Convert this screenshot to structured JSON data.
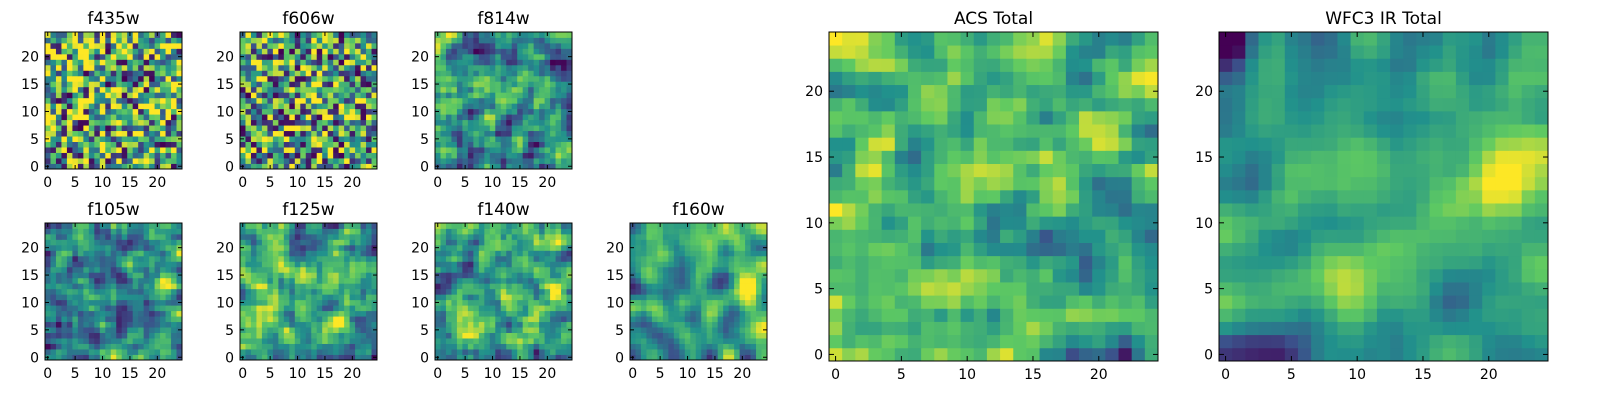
{
  "figure": {
    "layout": "grid of image panels"
  },
  "colormap": [
    "#440154",
    "#3b528b",
    "#21918c",
    "#5ec962",
    "#fde725"
  ],
  "chart_data": [
    {
      "type": "heatmap",
      "title": "f435w",
      "grid": [
        25,
        25
      ],
      "xlim": [
        0,
        24
      ],
      "ylim": [
        0,
        24
      ],
      "xticks": [
        "0",
        "5",
        "10",
        "15",
        "20"
      ],
      "yticks": [
        "0",
        "5",
        "10",
        "15",
        "20"
      ],
      "mean": 0.6,
      "contrast": 0.75,
      "smooth": 0,
      "hotspot": [],
      "dark_corner": false,
      "seed": 11
    },
    {
      "type": "heatmap",
      "title": "f606w",
      "grid": [
        25,
        25
      ],
      "xlim": [
        0,
        24
      ],
      "ylim": [
        0,
        24
      ],
      "xticks": [
        "0",
        "5",
        "10",
        "15",
        "20"
      ],
      "yticks": [
        "0",
        "5",
        "10",
        "15",
        "20"
      ],
      "mean": 0.55,
      "contrast": 0.7,
      "smooth": 0,
      "hotspot": [
        13,
        13
      ],
      "dark_corner": false,
      "seed": 23
    },
    {
      "type": "heatmap",
      "title": "f814w",
      "grid": [
        25,
        25
      ],
      "xlim": [
        0,
        24
      ],
      "ylim": [
        0,
        24
      ],
      "xticks": [
        "0",
        "5",
        "10",
        "15",
        "20"
      ],
      "yticks": [
        "0",
        "5",
        "10",
        "15",
        "20"
      ],
      "mean": 0.5,
      "contrast": 0.65,
      "smooth": 1,
      "hotspot": [
        13,
        13
      ],
      "dark_corner": false,
      "seed": 37
    },
    {
      "type": "heatmap",
      "title": "f105w",
      "grid": [
        25,
        25
      ],
      "xlim": [
        0,
        24
      ],
      "ylim": [
        0,
        24
      ],
      "xticks": [
        "0",
        "5",
        "10",
        "15",
        "20"
      ],
      "yticks": [
        "0",
        "5",
        "10",
        "15",
        "20"
      ],
      "mean": 0.5,
      "contrast": 0.6,
      "smooth": 1,
      "hotspot": [
        13,
        22
      ],
      "dark_corner": false,
      "seed": 41
    },
    {
      "type": "heatmap",
      "title": "f125w",
      "grid": [
        25,
        25
      ],
      "xlim": [
        0,
        24
      ],
      "ylim": [
        0,
        24
      ],
      "xticks": [
        "0",
        "5",
        "10",
        "15",
        "20"
      ],
      "yticks": [
        "0",
        "5",
        "10",
        "15",
        "20"
      ],
      "mean": 0.55,
      "contrast": 0.65,
      "smooth": 1,
      "hotspot": [
        13,
        20
      ],
      "dark_corner": false,
      "seed": 53
    },
    {
      "type": "heatmap",
      "title": "f140w",
      "grid": [
        25,
        25
      ],
      "xlim": [
        0,
        24
      ],
      "ylim": [
        0,
        24
      ],
      "xticks": [
        "0",
        "5",
        "10",
        "15",
        "20"
      ],
      "yticks": [
        "0",
        "5",
        "10",
        "15",
        "20"
      ],
      "mean": 0.55,
      "contrast": 0.6,
      "smooth": 1,
      "hotspot": [
        13,
        21
      ],
      "dark_corner": false,
      "seed": 67
    },
    {
      "type": "heatmap",
      "title": "f160w",
      "grid": [
        25,
        25
      ],
      "xlim": [
        0,
        24
      ],
      "ylim": [
        0,
        24
      ],
      "xticks": [
        "0",
        "5",
        "10",
        "15",
        "20"
      ],
      "yticks": [
        "0",
        "5",
        "10",
        "15",
        "20"
      ],
      "mean": 0.55,
      "contrast": 0.55,
      "smooth": 2,
      "hotspot": [
        13,
        21
      ],
      "dark_corner": false,
      "seed": 79
    },
    {
      "type": "heatmap",
      "title": "ACS Total",
      "grid": [
        25,
        25
      ],
      "xlim": [
        0,
        24
      ],
      "ylim": [
        0,
        24
      ],
      "xticks": [
        "0",
        "5",
        "10",
        "15",
        "20"
      ],
      "yticks": [
        "0",
        "5",
        "10",
        "15",
        "20"
      ],
      "mean": 0.55,
      "contrast": 0.6,
      "smooth": 1,
      "hotspot": [
        13,
        13
      ],
      "dark_corner": false,
      "seed": 83
    },
    {
      "type": "heatmap",
      "title": "WFC3 IR Total",
      "grid": [
        25,
        25
      ],
      "xlim": [
        0,
        24
      ],
      "ylim": [
        0,
        24
      ],
      "xticks": [
        "0",
        "5",
        "10",
        "15",
        "20"
      ],
      "yticks": [
        "0",
        "5",
        "10",
        "15",
        "20"
      ],
      "mean": 0.5,
      "contrast": 0.5,
      "smooth": 2,
      "hotspot": [
        13,
        21
      ],
      "dark_corner": true,
      "seed": 97
    }
  ]
}
